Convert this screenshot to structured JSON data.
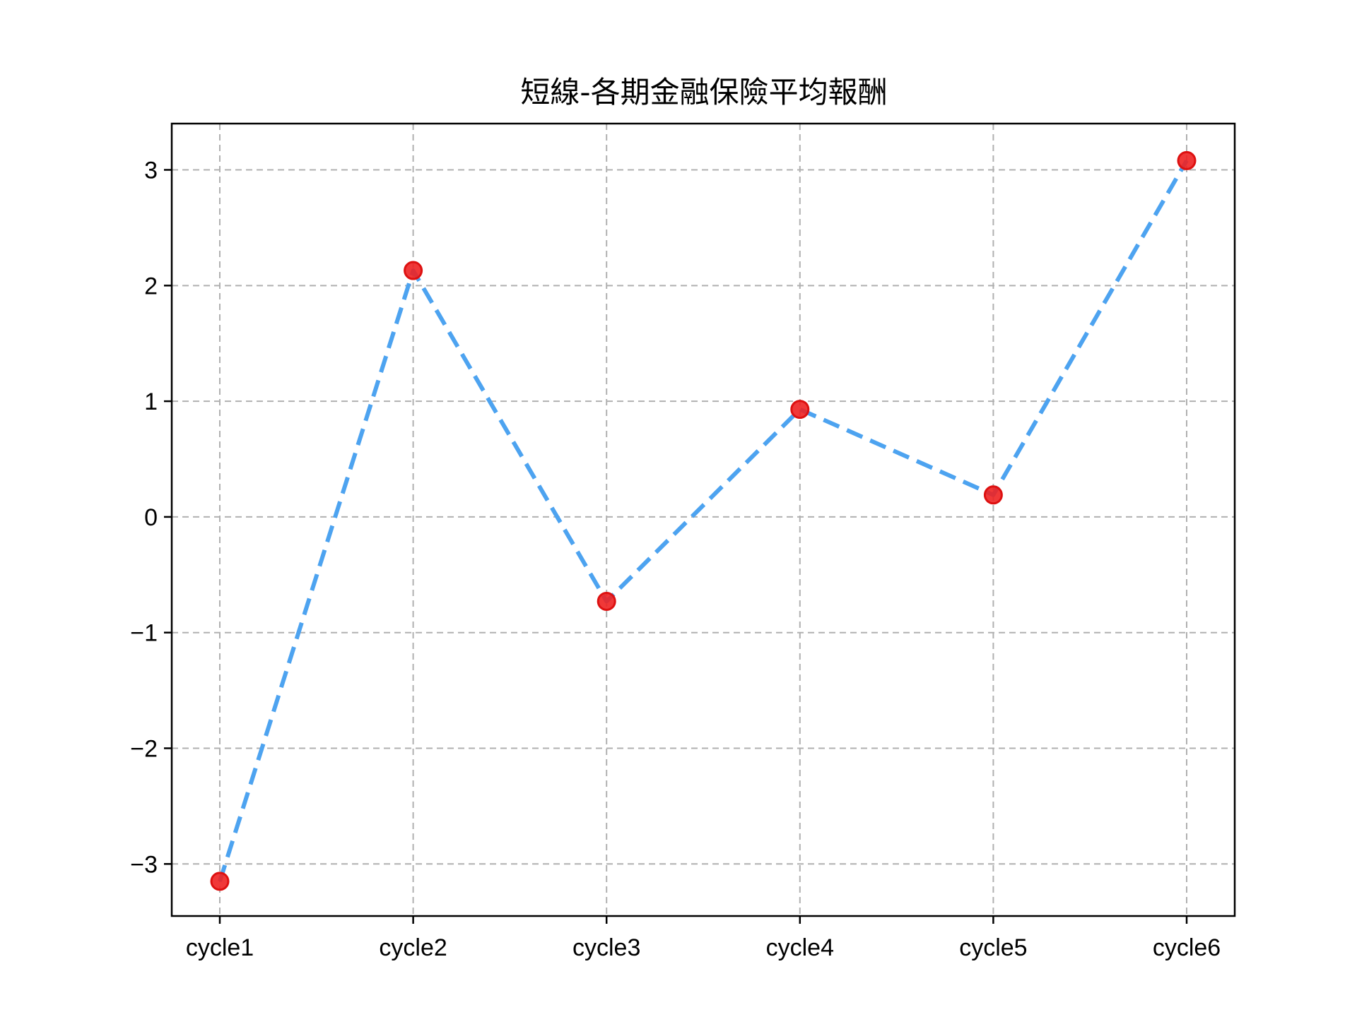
{
  "chart_data": {
    "type": "line",
    "title": "短線-各期金融保險平均報酬",
    "xlabel": "",
    "ylabel": "",
    "categories": [
      "cycle1",
      "cycle2",
      "cycle3",
      "cycle4",
      "cycle5",
      "cycle6"
    ],
    "series": [
      {
        "values": [
          -3.15,
          2.13,
          -0.73,
          0.93,
          0.19,
          3.08
        ]
      }
    ],
    "ylim": [
      -3.45,
      3.4
    ],
    "yticks": [
      -3,
      -2,
      -1,
      0,
      1,
      2,
      3
    ],
    "ytick_labels": [
      "−3",
      "−2",
      "−1",
      "0",
      "1",
      "2",
      "3"
    ],
    "grid": true,
    "legend": "none",
    "colors": {
      "line": "#4da3f0",
      "marker_fill": "#ee2222",
      "marker_edge": "#dd1111",
      "grid": "#b0b0b0"
    }
  }
}
